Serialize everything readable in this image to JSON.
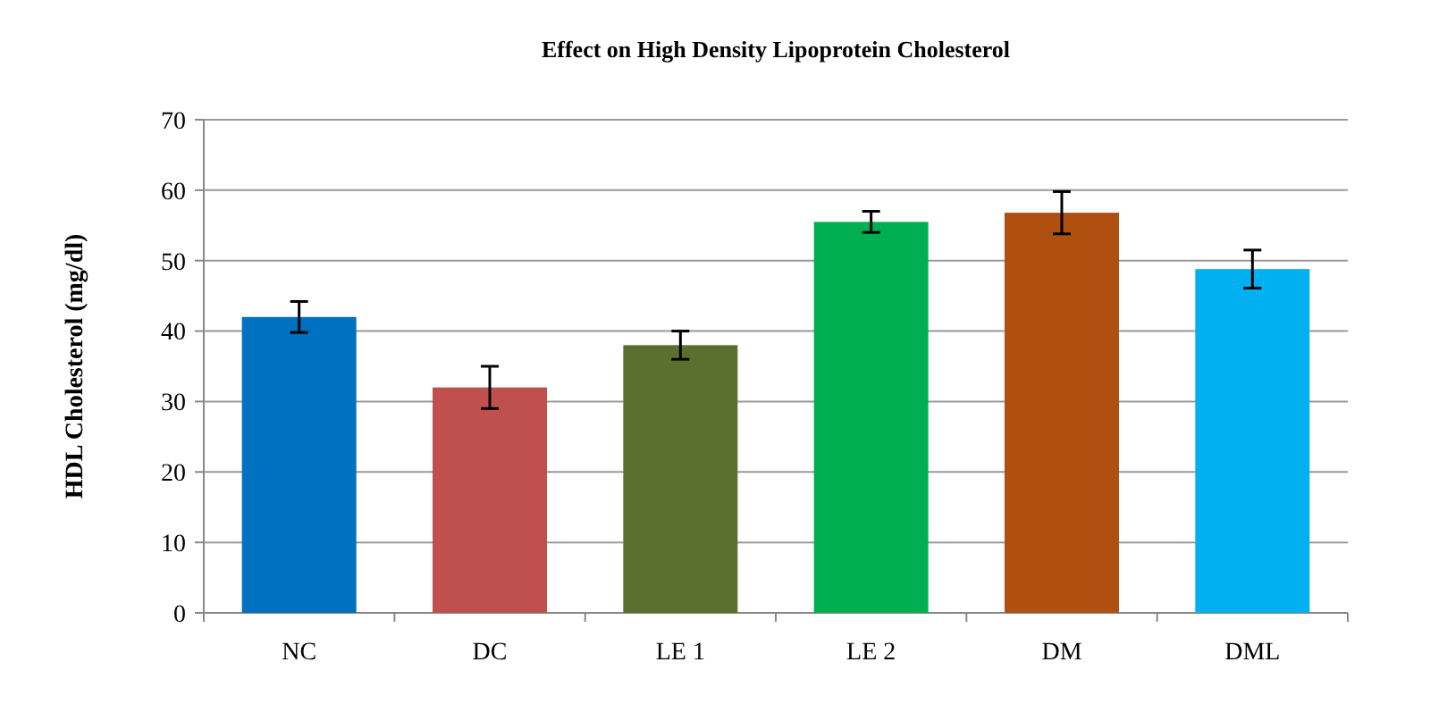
{
  "chart_data": {
    "type": "bar",
    "title": "Effect on High Density Lipoprotein Cholesterol",
    "ylabel": "HDL Cholesterol (mg/dl)",
    "categories": [
      "NC",
      "DC",
      "LE 1",
      "LE 2",
      "DM",
      "DML"
    ],
    "values": [
      42,
      32,
      38,
      55.5,
      56.8,
      48.8
    ],
    "errors": [
      2.2,
      3,
      2,
      1.5,
      3,
      2.7
    ],
    "colors": [
      "#0070c0",
      "#c0504d",
      "#5b702f",
      "#00b050",
      "#b05010",
      "#00b0f0"
    ],
    "ylim": [
      0,
      70
    ],
    "yticks": [
      0,
      10,
      20,
      30,
      40,
      50,
      60,
      70
    ],
    "grid": "y"
  }
}
